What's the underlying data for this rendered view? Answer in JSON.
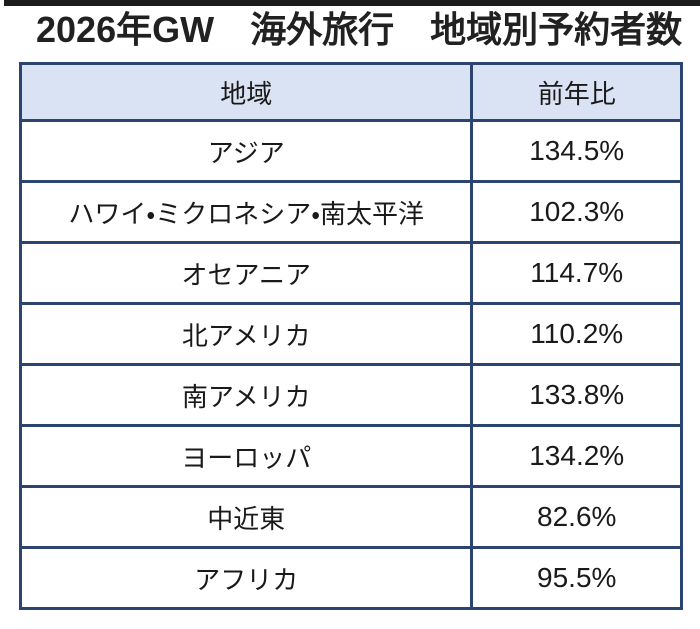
{
  "title": "2026年GW　海外旅行　地域別予約者数",
  "colors": {
    "accent_bar": "#1c1c1c",
    "table_border": "#2b4470",
    "header_fill": "#dae3f3",
    "text": "#1a1a1a"
  },
  "table": {
    "columns": [
      {
        "label": "地域"
      },
      {
        "label": "前年比"
      }
    ],
    "rows": [
      {
        "region": "アジア",
        "yoy": "134.5%"
      },
      {
        "region": "ハワイ・ミクロネシア・南太平洋",
        "yoy": "102.3%"
      },
      {
        "region": "オセアニア",
        "yoy": "114.7%"
      },
      {
        "region": "北アメリカ",
        "yoy": "110.2%"
      },
      {
        "region": "南アメリカ",
        "yoy": "133.8%"
      },
      {
        "region": "ヨーロッパ",
        "yoy": "134.2%"
      },
      {
        "region": "中近東",
        "yoy": "82.6%"
      },
      {
        "region": "アフリカ",
        "yoy": "95.5%"
      }
    ]
  },
  "chart_data": {
    "type": "table",
    "title": "2026年GW　海外旅行　地域別予約者数",
    "columns": [
      "地域",
      "前年比"
    ],
    "rows": [
      [
        "アジア",
        "134.5%"
      ],
      [
        "ハワイ・ミクロネシア・南太平洋",
        "102.3%"
      ],
      [
        "オセアニア",
        "114.7%"
      ],
      [
        "北アメリカ",
        "110.2%"
      ],
      [
        "南アメリカ",
        "133.8%"
      ],
      [
        "ヨーロッパ",
        "134.2%"
      ],
      [
        "中近東",
        "82.6%"
      ],
      [
        "アフリカ",
        "95.5%"
      ]
    ],
    "yoy_percent_values": {
      "アジア": 134.5,
      "ハワイ・ミクロネシア・南太平洋": 102.3,
      "オセアニア": 114.7,
      "北アメリカ": 110.2,
      "南アメリカ": 133.8,
      "ヨーロッパ": 134.2,
      "中近東": 82.6,
      "アフリカ": 95.5
    }
  }
}
